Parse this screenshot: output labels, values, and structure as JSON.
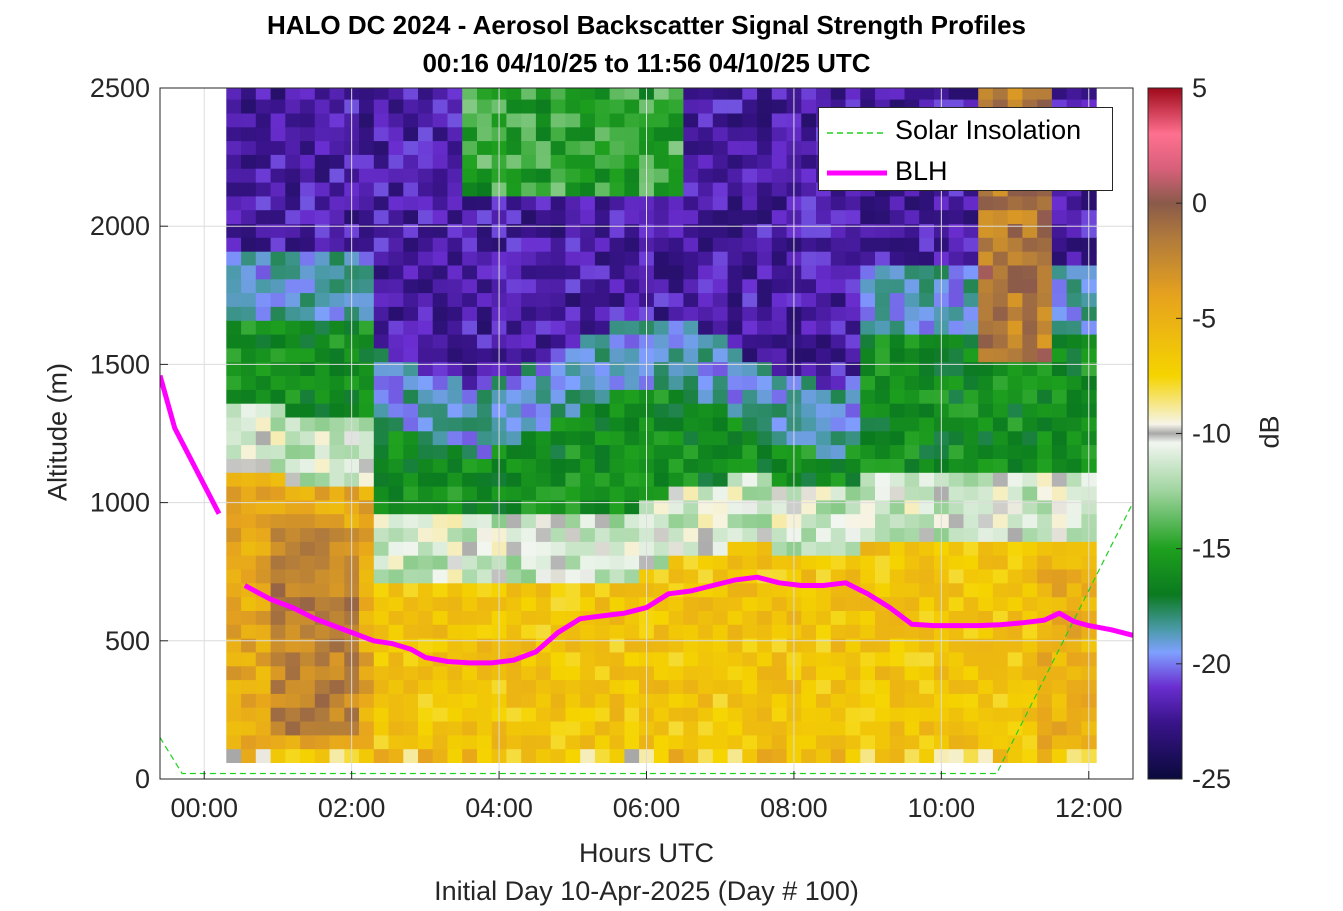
{
  "chart_data": {
    "type": "heatmap",
    "title": "HALO DC 2024 - Aerosol Backscatter Signal Strength Profiles",
    "subtitle": "00:16 04/10/25 to 11:56 04/10/25  UTC",
    "xlabel": "Hours UTC",
    "xsublabel": "Initial Day 10-Apr-2025 (Day # 100)",
    "ylabel": "Altitude (m)",
    "colorbar_label": "dB",
    "xlim": [
      -0.6,
      12.6
    ],
    "ylim": [
      0,
      2500
    ],
    "clim": [
      -25,
      5
    ],
    "x_ticks": [
      0,
      2,
      4,
      6,
      8,
      10,
      12
    ],
    "x_tick_labels": [
      "00:00",
      "02:00",
      "04:00",
      "06:00",
      "08:00",
      "10:00",
      "12:00"
    ],
    "y_ticks": [
      0,
      500,
      1000,
      1500,
      2000,
      2500
    ],
    "y_tick_labels": [
      "0",
      "500",
      "1000",
      "1500",
      "2000",
      "2500"
    ],
    "colorbar_ticks": [
      5,
      0,
      -5,
      -10,
      -15,
      -20,
      -25
    ],
    "colorbar_tick_labels": [
      "5",
      "0",
      "-5",
      "-10",
      "-15",
      "-20",
      "-25"
    ],
    "grid": true,
    "legend_position": "top-right",
    "colormap": [
      {
        "v": -25,
        "color": "#0a0a3c"
      },
      {
        "v": -22.5,
        "color": "#3a148c"
      },
      {
        "v": -21,
        "color": "#6a2ed0"
      },
      {
        "v": -19.5,
        "color": "#7fa0ff"
      },
      {
        "v": -18.5,
        "color": "#4a9aa8"
      },
      {
        "v": -17,
        "color": "#0b7a20"
      },
      {
        "v": -15,
        "color": "#1ea01e"
      },
      {
        "v": -12.5,
        "color": "#9fd49f"
      },
      {
        "v": -10.4,
        "color": "#f2f6f0"
      },
      {
        "v": -10,
        "color": "#a8a8a8"
      },
      {
        "v": -9.6,
        "color": "#f6f4e8"
      },
      {
        "v": -7.5,
        "color": "#f5d400"
      },
      {
        "v": -4,
        "color": "#e6a21e"
      },
      {
        "v": -1.5,
        "color": "#b07a3c"
      },
      {
        "v": 0,
        "color": "#8a5a4a"
      },
      {
        "v": 1.5,
        "color": "#d8607a"
      },
      {
        "v": 3,
        "color": "#ff7090"
      },
      {
        "v": 5,
        "color": "#9e0a1a"
      }
    ],
    "heatmap": {
      "x_start": -0.2,
      "x_step": 0.4,
      "columns": 34,
      "data_start_col": 1,
      "altitudes_m": [
        100,
        200,
        400,
        600,
        800,
        1000,
        1200,
        1400,
        1600,
        1800,
        2000,
        2200,
        2400
      ],
      "notes_regions": [
        {
          "from_h": 0.3,
          "to_h": 2.4,
          "top_m": 1150,
          "value_db": -6
        },
        {
          "from_h": 2.4,
          "to_h": 9.0,
          "top_m": 750,
          "value_db": -7
        },
        {
          "from_h": 9.0,
          "to_h": 11.9,
          "top_m": 850,
          "value_db": -8
        }
      ]
    },
    "series": [
      {
        "name": "Solar Insolation",
        "color": "#20d020",
        "style": "dashed",
        "x": [
          -0.6,
          -0.3,
          10.75,
          12.6
        ],
        "y": [
          150,
          20,
          20,
          1000
        ]
      },
      {
        "name": "BLH",
        "color": "#ff00ff",
        "style": "solid",
        "segments": [
          {
            "x": [
              -0.6,
              -0.4,
              0.2
            ],
            "y": [
              1460,
              1270,
              960
            ]
          },
          {
            "x": [
              0.55,
              0.9,
              1.2,
              1.5,
              1.8,
              2.0,
              2.3,
              2.55,
              2.8,
              3.0,
              3.3,
              3.6,
              3.9,
              4.2,
              4.5,
              4.8,
              5.1,
              5.4,
              5.7,
              6.0,
              6.3,
              6.6,
              6.9,
              7.2,
              7.5,
              7.8,
              8.1,
              8.4,
              8.7,
              9.0,
              9.3,
              9.6,
              9.9,
              10.2,
              10.5,
              10.8,
              11.1,
              11.4,
              11.6,
              11.8,
              12.0,
              12.3,
              12.6
            ],
            "y": [
              700,
              650,
              620,
              580,
              550,
              530,
              500,
              490,
              470,
              440,
              425,
              420,
              420,
              430,
              460,
              530,
              580,
              590,
              600,
              620,
              670,
              680,
              700,
              720,
              730,
              710,
              700,
              700,
              710,
              670,
              620,
              560,
              555,
              555,
              555,
              558,
              565,
              575,
              600,
              570,
              555,
              540,
              520
            ]
          }
        ]
      }
    ]
  },
  "legend": {
    "items": [
      {
        "label": "Solar Insolation",
        "color": "#20d020"
      },
      {
        "label": "BLH",
        "color": "#ff00ff"
      }
    ]
  }
}
